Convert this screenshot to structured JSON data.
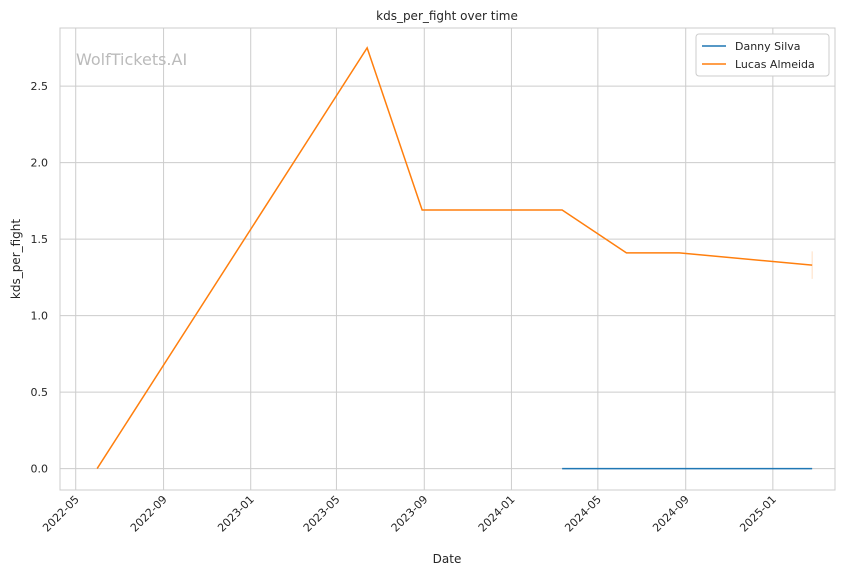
{
  "chart_data": {
    "type": "line",
    "title": "kds_per_fight over time",
    "xlabel": "Date",
    "ylabel": "kds_per_fight",
    "watermark": "WolfTickets.AI",
    "xlim": [
      "2022-04-09",
      "2025-03-29"
    ],
    "ylim": [
      -0.14,
      2.88
    ],
    "x_ticks": [
      "2022-05",
      "2022-09",
      "2023-01",
      "2023-05",
      "2023-09",
      "2024-01",
      "2024-05",
      "2024-09",
      "2025-01"
    ],
    "y_ticks": [
      0.0,
      0.5,
      1.0,
      1.5,
      2.0,
      2.5
    ],
    "grid": true,
    "legend": "top-right",
    "series": [
      {
        "name": "Danny Silva",
        "color": "#1f77b4",
        "x": [
          "2024-03-12",
          "2024-06-10",
          "2024-08-23",
          "2025-02-25"
        ],
        "y": [
          0,
          0,
          0,
          0
        ]
      },
      {
        "name": "Lucas Almeida",
        "color": "#ff7f0e",
        "x": [
          "2022-05-31",
          "2023-06-13",
          "2023-08-29",
          "2024-03-12",
          "2024-06-10",
          "2024-08-23",
          "2025-02-25"
        ],
        "y": [
          0.0,
          2.75,
          1.69,
          1.69,
          1.41,
          1.41,
          1.33
        ],
        "last_interval": [
          1.24,
          1.42
        ]
      }
    ]
  }
}
